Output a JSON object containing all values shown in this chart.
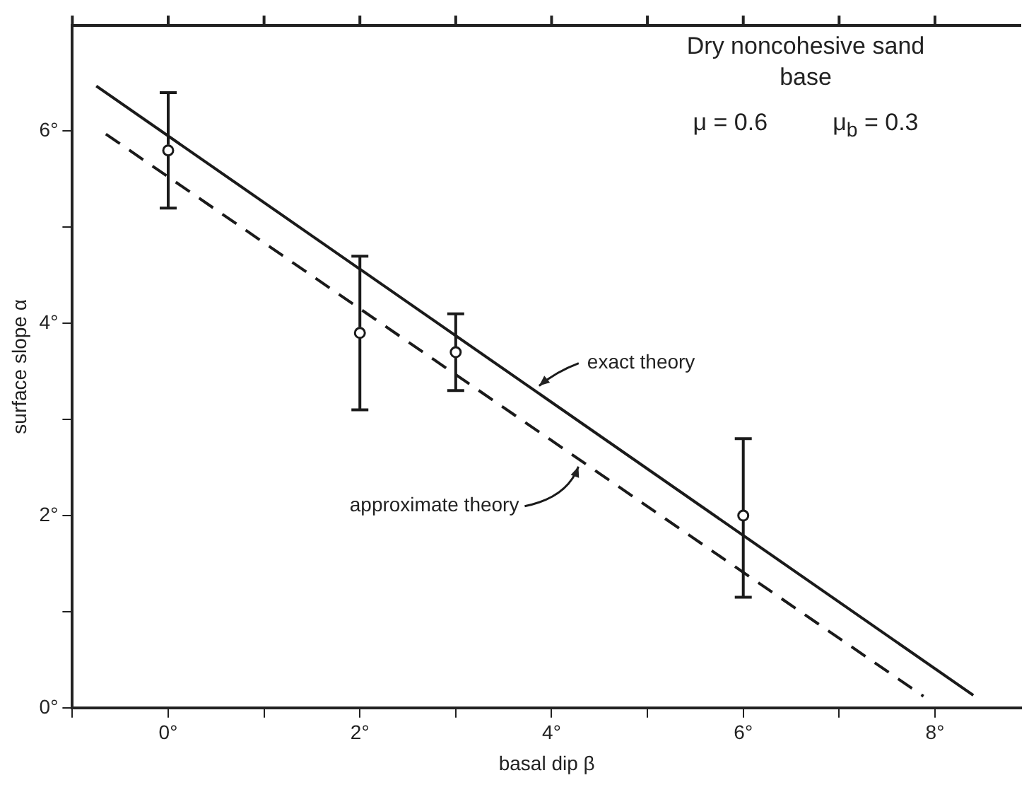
{
  "chart_data": {
    "type": "line",
    "xlabel": "basal dip β",
    "ylabel": "surface slope α",
    "xlim": [
      -1,
      8.9
    ],
    "ylim": [
      0,
      7.1
    ],
    "xticks": [
      {
        "value": -1,
        "label": null
      },
      {
        "value": 0,
        "label": "0°"
      },
      {
        "value": 1,
        "label": null
      },
      {
        "value": 2,
        "label": "2°"
      },
      {
        "value": 3,
        "label": null
      },
      {
        "value": 4,
        "label": "4°"
      },
      {
        "value": 5,
        "label": null
      },
      {
        "value": 6,
        "label": "6°"
      },
      {
        "value": 7,
        "label": null
      },
      {
        "value": 8,
        "label": "8°"
      }
    ],
    "yticks": [
      {
        "value": 0,
        "label": "0°"
      },
      {
        "value": 1,
        "label": null
      },
      {
        "value": 2,
        "label": "2°"
      },
      {
        "value": 3,
        "label": null
      },
      {
        "value": 4,
        "label": "4°"
      },
      {
        "value": 5,
        "label": null
      },
      {
        "value": 6,
        "label": "6°"
      }
    ],
    "grid": false,
    "legend": false,
    "series": [
      {
        "color": "#1a1a1a",
        "line_style": "solid",
        "marker": "none",
        "x": [
          -0.75,
          8.4
        ],
        "values": [
          6.47,
          0.13
        ]
      },
      {
        "color": "#1a1a1a",
        "line_style": "dashed",
        "marker": "none",
        "x": [
          -0.65,
          7.88
        ],
        "values": [
          5.97,
          0.12
        ]
      },
      {
        "type": "scatter",
        "color": "#1a1a1a",
        "marker": "circle",
        "x": [
          0,
          2,
          3,
          6
        ],
        "values": [
          5.8,
          3.9,
          3.7,
          2.0
        ],
        "errors": [
          [
            5.2,
            6.4
          ],
          [
            3.1,
            4.7
          ],
          [
            3.3,
            4.1
          ],
          [
            1.15,
            2.8
          ]
        ]
      }
    ],
    "annotations": [
      "Dry noncohesive sand",
      "base",
      "μ = 0.6",
      "μ$_{b}$ = 0.3",
      {
        "text": "exact theory",
        "x": 3.87,
        "y": 3.35
      },
      {
        "text": "approximate theory",
        "x": 4.28,
        "y": 2.51
      }
    ]
  }
}
